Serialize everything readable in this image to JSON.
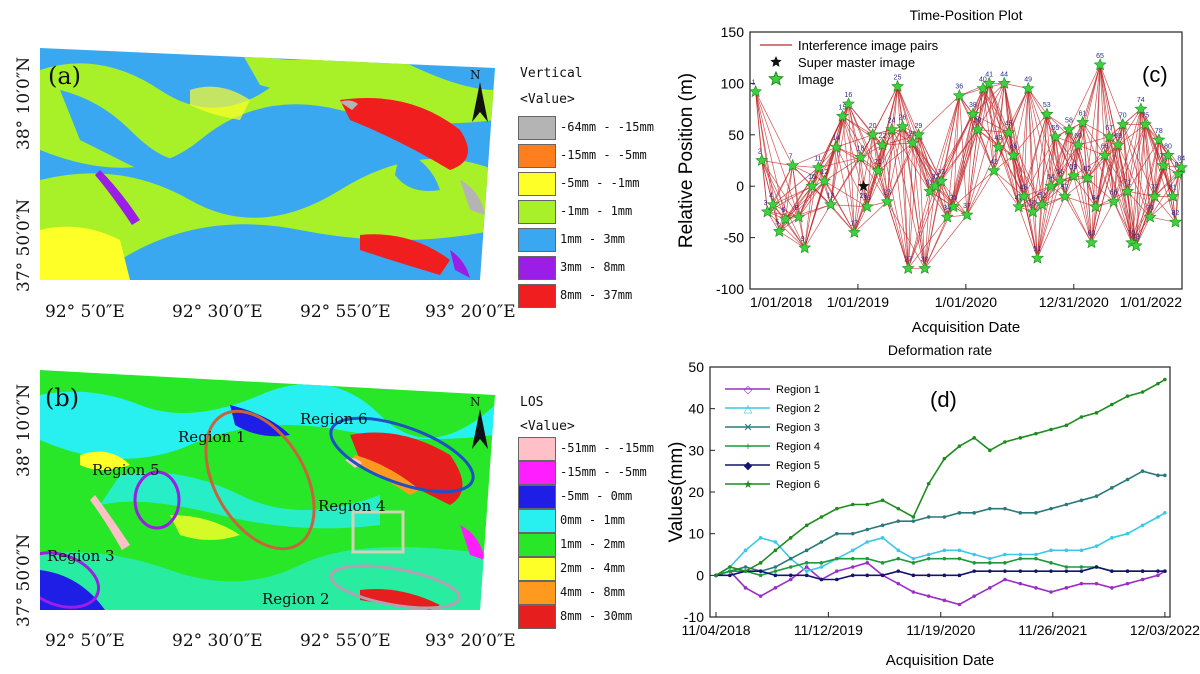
{
  "panel_a": {
    "label": "(a)",
    "legend_title": "Vertical",
    "legend_subtitle": "<Value>",
    "legend": [
      {
        "label": "-64mm - -15mm",
        "color": "#b4b4b4"
      },
      {
        "label": "-15mm - -5mm",
        "color": "#ff7f1e"
      },
      {
        "label": "-5mm - -1mm",
        "color": "#ffff28"
      },
      {
        "label": "-1mm - 1mm",
        "color": "#a8f028"
      },
      {
        "label": "1mm - 3mm",
        "color": "#3aa8f0"
      },
      {
        "label": "3mm - 8mm",
        "color": "#9a1ee6"
      },
      {
        "label": "8mm - 37mm",
        "color": "#f01e1e"
      }
    ],
    "x_ticks": [
      "92° 5′0″E",
      "92° 30′0″E",
      "92° 55′0″E",
      "93° 20′0″E"
    ],
    "y_ticks": [
      "37° 50′0″N",
      "38° 10′0″N"
    ]
  },
  "panel_b": {
    "label": "(b)",
    "legend_title": "LOS",
    "legend_subtitle": "<Value>",
    "legend": [
      {
        "label": "-51mm - -15mm",
        "color": "#ffc0c8"
      },
      {
        "label": "-15mm - -5mm",
        "color": "#ff1eff"
      },
      {
        "label": "-5mm - 0mm",
        "color": "#1e1ee6"
      },
      {
        "label": "0mm - 1mm",
        "color": "#28f0f0"
      },
      {
        "label": "1mm - 2mm",
        "color": "#28e628"
      },
      {
        "label": "2mm - 4mm",
        "color": "#ffff28"
      },
      {
        "label": "4mm - 8mm",
        "color": "#ff9a1e"
      },
      {
        "label": "8mm - 30mm",
        "color": "#e61e1e"
      }
    ],
    "regions": [
      "Region 1",
      "Region 2",
      "Region 3",
      "Region 4",
      "Region 5",
      "Region 6"
    ],
    "x_ticks": [
      "92° 5′0″E",
      "92° 30′0″E",
      "92° 55′0″E",
      "93° 20′0″E"
    ],
    "y_ticks": [
      "37° 50′0″N",
      "38° 10′0″N"
    ]
  },
  "chart_data": [
    {
      "type": "scatter",
      "panel_label": "(c)",
      "title": "Time-Position Plot",
      "xlabel": "Acquisition Date",
      "ylabel": "Relative Position (m)",
      "ylim": [
        -100,
        150
      ],
      "y_ticks": [
        -100,
        -50,
        0,
        50,
        100,
        150
      ],
      "x_ticks": [
        "1/01/2018",
        "1/01/2019",
        "1/01/2020",
        "12/31/2020",
        "1/01/2022"
      ],
      "legend": [
        "Interference image pairs",
        "Super master image",
        "Image"
      ],
      "super_master": {
        "label": "28",
        "date": "2019-01-20",
        "value": 0
      },
      "images": [
        {
          "id": "1",
          "date": "2018-01-20",
          "value": 92
        },
        {
          "id": "2",
          "date": "2018-02-10",
          "value": 25
        },
        {
          "id": "3",
          "date": "2018-03-01",
          "value": -25
        },
        {
          "id": "4",
          "date": "2018-03-20",
          "value": -18
        },
        {
          "id": "5",
          "date": "2018-04-10",
          "value": -44
        },
        {
          "id": "6",
          "date": "2018-05-01",
          "value": -32
        },
        {
          "id": "7",
          "date": "2018-05-25",
          "value": 20
        },
        {
          "id": "8",
          "date": "2018-06-15",
          "value": -30
        },
        {
          "id": "9",
          "date": "2018-07-05",
          "value": -60
        },
        {
          "id": "10",
          "date": "2018-07-30",
          "value": 0
        },
        {
          "id": "11",
          "date": "2018-08-20",
          "value": 18
        },
        {
          "id": "12",
          "date": "2018-09-10",
          "value": 5
        },
        {
          "id": "13",
          "date": "2018-10-01",
          "value": -18
        },
        {
          "id": "14",
          "date": "2018-10-20",
          "value": 38
        },
        {
          "id": "15",
          "date": "2018-11-10",
          "value": 68
        },
        {
          "id": "16",
          "date": "2018-11-30",
          "value": 80
        },
        {
          "id": "17",
          "date": "2018-12-20",
          "value": -45
        },
        {
          "id": "18",
          "date": "2019-01-10",
          "value": 28
        },
        {
          "id": "19",
          "date": "2019-02-01",
          "value": -20
        },
        {
          "id": "20",
          "date": "2019-02-20",
          "value": 50
        },
        {
          "id": "21",
          "date": "2019-03-10",
          "value": 15
        },
        {
          "id": "22",
          "date": "2019-03-25",
          "value": 40
        },
        {
          "id": "23",
          "date": "2019-04-10",
          "value": -15
        },
        {
          "id": "24",
          "date": "2019-04-25",
          "value": 55
        },
        {
          "id": "25",
          "date": "2019-05-15",
          "value": 97
        },
        {
          "id": "26",
          "date": "2019-06-01",
          "value": 58
        },
        {
          "id": "27",
          "date": "2019-06-20",
          "value": -80
        },
        {
          "id": "28",
          "date": "2019-07-05",
          "value": 42
        },
        {
          "id": "29",
          "date": "2019-07-25",
          "value": 50
        },
        {
          "id": "30",
          "date": "2019-08-15",
          "value": -80
        },
        {
          "id": "31",
          "date": "2019-09-01",
          "value": -5
        },
        {
          "id": "32",
          "date": "2019-09-20",
          "value": 0
        },
        {
          "id": "33",
          "date": "2019-10-10",
          "value": 5
        },
        {
          "id": "34",
          "date": "2019-10-30",
          "value": -30
        },
        {
          "id": "35",
          "date": "2019-11-20",
          "value": -20
        },
        {
          "id": "36",
          "date": "2019-12-10",
          "value": 88
        },
        {
          "id": "37",
          "date": "2020-01-05",
          "value": -28
        },
        {
          "id": "38",
          "date": "2020-01-25",
          "value": 70
        },
        {
          "id": "39",
          "date": "2020-02-10",
          "value": 55
        },
        {
          "id": "40",
          "date": "2020-02-28",
          "value": 95
        },
        {
          "id": "41",
          "date": "2020-03-20",
          "value": 100
        },
        {
          "id": "42",
          "date": "2020-04-05",
          "value": 15
        },
        {
          "id": "43",
          "date": "2020-04-20",
          "value": 38
        },
        {
          "id": "44",
          "date": "2020-05-10",
          "value": 100
        },
        {
          "id": "45",
          "date": "2020-05-25",
          "value": 52
        },
        {
          "id": "46",
          "date": "2020-06-10",
          "value": 30
        },
        {
          "id": "47",
          "date": "2020-06-28",
          "value": -20
        },
        {
          "id": "48",
          "date": "2020-07-15",
          "value": -10
        },
        {
          "id": "49",
          "date": "2020-07-30",
          "value": 95
        },
        {
          "id": "50",
          "date": "2020-08-15",
          "value": -25
        },
        {
          "id": "51",
          "date": "2020-08-30",
          "value": -70
        },
        {
          "id": "52",
          "date": "2020-09-15",
          "value": -18
        },
        {
          "id": "53",
          "date": "2020-10-01",
          "value": 70
        },
        {
          "id": "54",
          "date": "2020-10-15",
          "value": 0
        },
        {
          "id": "55",
          "date": "2020-10-30",
          "value": 48
        },
        {
          "id": "56",
          "date": "2020-11-15",
          "value": 5
        },
        {
          "id": "57",
          "date": "2020-12-01",
          "value": -10
        },
        {
          "id": "58",
          "date": "2020-12-15",
          "value": 55
        },
        {
          "id": "59",
          "date": "2020-12-30",
          "value": 10
        },
        {
          "id": "60",
          "date": "2021-01-15",
          "value": 40
        },
        {
          "id": "61",
          "date": "2021-01-30",
          "value": 62
        },
        {
          "id": "62",
          "date": "2021-02-15",
          "value": 8
        },
        {
          "id": "63",
          "date": "2021-03-01",
          "value": -55
        },
        {
          "id": "64",
          "date": "2021-03-15",
          "value": -20
        },
        {
          "id": "65",
          "date": "2021-03-30",
          "value": 118
        },
        {
          "id": "66",
          "date": "2021-04-15",
          "value": 30
        },
        {
          "id": "67",
          "date": "2021-04-30",
          "value": 48
        },
        {
          "id": "68",
          "date": "2021-05-15",
          "value": -15
        },
        {
          "id": "69",
          "date": "2021-05-30",
          "value": 40
        },
        {
          "id": "70",
          "date": "2021-06-15",
          "value": 60
        },
        {
          "id": "71",
          "date": "2021-07-01",
          "value": -5
        },
        {
          "id": "72",
          "date": "2021-07-15",
          "value": -55
        },
        {
          "id": "73",
          "date": "2021-07-30",
          "value": -58
        },
        {
          "id": "74",
          "date": "2021-08-15",
          "value": 75
        },
        {
          "id": "75",
          "date": "2021-08-30",
          "value": 60
        },
        {
          "id": "76",
          "date": "2021-09-15",
          "value": -30
        },
        {
          "id": "77",
          "date": "2021-09-30",
          "value": -10
        },
        {
          "id": "78",
          "date": "2021-10-15",
          "value": 45
        },
        {
          "id": "79",
          "date": "2021-10-30",
          "value": 20
        },
        {
          "id": "80",
          "date": "2021-11-15",
          "value": 30
        },
        {
          "id": "81",
          "date": "2021-12-01",
          "value": -10
        },
        {
          "id": "82",
          "date": "2021-12-10",
          "value": -35
        },
        {
          "id": "83",
          "date": "2021-12-20",
          "value": 12
        },
        {
          "id": "84",
          "date": "2021-12-30",
          "value": 18
        }
      ]
    },
    {
      "type": "line",
      "panel_label": "(d)",
      "title": "Deformation rate",
      "xlabel": "Acquisition Date",
      "ylabel": "Values(mm)",
      "ylim": [
        -10,
        50
      ],
      "y_ticks": [
        -10,
        0,
        10,
        20,
        30,
        40,
        50
      ],
      "x_ticks": [
        "11/04/2018",
        "11/12/2019",
        "11/19/2020",
        "11/26/2021",
        "12/03/2022"
      ],
      "legend_position": "top-left",
      "x": [
        "2018-11-04",
        "2018-12-20",
        "2019-02-10",
        "2019-04-01",
        "2019-05-20",
        "2019-07-10",
        "2019-09-01",
        "2019-10-20",
        "2019-12-10",
        "2020-02-01",
        "2020-03-20",
        "2020-05-10",
        "2020-07-01",
        "2020-08-20",
        "2020-10-10",
        "2020-12-01",
        "2021-01-20",
        "2021-03-10",
        "2021-05-01",
        "2021-06-20",
        "2021-08-10",
        "2021-10-01",
        "2021-11-20",
        "2022-01-10",
        "2022-03-01",
        "2022-04-20",
        "2022-06-10",
        "2022-08-01",
        "2022-09-20",
        "2022-11-10",
        "2022-12-03"
      ],
      "series": [
        {
          "name": "Region 1",
          "color": "#9a2ec8",
          "values": [
            0,
            1,
            -3,
            -5,
            -3,
            -1,
            2,
            -1,
            1,
            2,
            3,
            0,
            -2,
            -4,
            -5,
            -6,
            -7,
            -5,
            -3,
            -1,
            -2,
            -3,
            -4,
            -3,
            -2,
            -2,
            -3,
            -2,
            -1,
            0,
            1
          ]
        },
        {
          "name": "Region 2",
          "color": "#3cc8e6",
          "values": [
            0,
            2,
            6,
            9,
            8,
            4,
            1,
            2,
            4,
            6,
            8,
            9,
            6,
            4,
            5,
            6,
            6,
            5,
            4,
            5,
            5,
            5,
            6,
            6,
            6,
            7,
            9,
            10,
            12,
            14,
            15
          ]
        },
        {
          "name": "Region 3",
          "color": "#2a7a7a",
          "values": [
            0,
            1,
            2,
            1,
            2,
            4,
            6,
            8,
            10,
            10,
            11,
            12,
            13,
            13,
            14,
            14,
            15,
            15,
            16,
            16,
            15,
            15,
            16,
            17,
            18,
            19,
            21,
            23,
            25,
            24,
            24
          ]
        },
        {
          "name": "Region 4",
          "color": "#1e9a3c",
          "values": [
            0,
            1,
            1,
            0,
            1,
            2,
            3,
            3,
            4,
            4,
            4,
            3,
            4,
            3,
            4,
            4,
            4,
            3,
            3,
            3,
            4,
            4,
            3,
            2,
            2,
            2,
            1,
            1,
            1,
            1,
            1
          ]
        },
        {
          "name": "Region 5",
          "color": "#14146e",
          "values": [
            0,
            0,
            1,
            1,
            0,
            0,
            0,
            -1,
            -1,
            0,
            0,
            0,
            1,
            0,
            0,
            0,
            0,
            1,
            1,
            1,
            1,
            1,
            1,
            1,
            1,
            2,
            1,
            1,
            1,
            1,
            1
          ]
        },
        {
          "name": "Region 6",
          "color": "#1e8c1e",
          "values": [
            0,
            2,
            1,
            3,
            6,
            9,
            12,
            14,
            16,
            17,
            17,
            18,
            16,
            14,
            22,
            28,
            31,
            33,
            30,
            32,
            33,
            34,
            35,
            36,
            38,
            39,
            41,
            43,
            44,
            46,
            47
          ]
        }
      ]
    }
  ]
}
